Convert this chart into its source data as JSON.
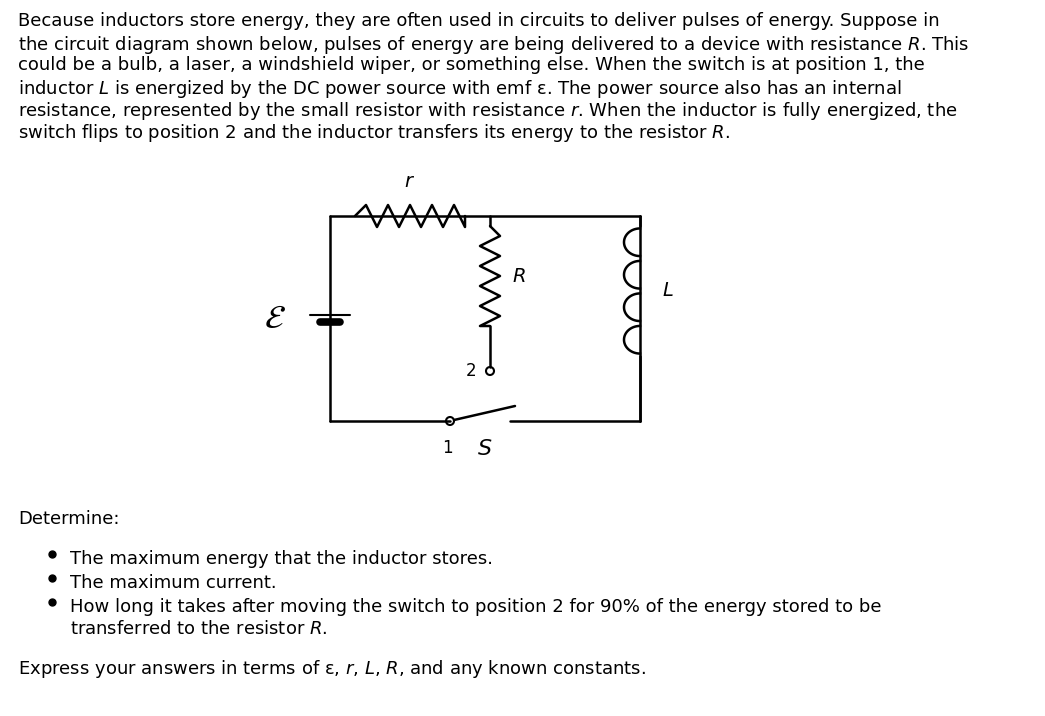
{
  "bg_color": "#ffffff",
  "text_color": "#000000",
  "font_size_para": 13.0,
  "font_size_label": 13.0,
  "para_lines": [
    "Because inductors store energy, they are often used in circuits to deliver pulses of energy. Suppose in",
    "the circuit diagram shown below, pulses of energy are being delivered to a device with resistance $R$. This",
    "could be a bulb, a laser, a windshield wiper, or something else. When the switch is at position 1, the",
    "inductor $L$ is energized by the DC power source with emf ε. The power source also has an internal",
    "resistance, represented by the small resistor with resistance $r$. When the inductor is fully energized, the",
    "switch flips to position 2 and the inductor transfers its energy to the resistor $R$."
  ],
  "determine_label": "Determine:",
  "bullet1": "The maximum energy that the inductor stores.",
  "bullet2": "The maximum current.",
  "bullet3a": "How long it takes after moving the switch to position 2 for 90% of the energy stored to be",
  "bullet3b": "transferred to the resistor $R$.",
  "express": "Express your answers in terms of ε, $r$, $L$, $R$, and any known constants."
}
